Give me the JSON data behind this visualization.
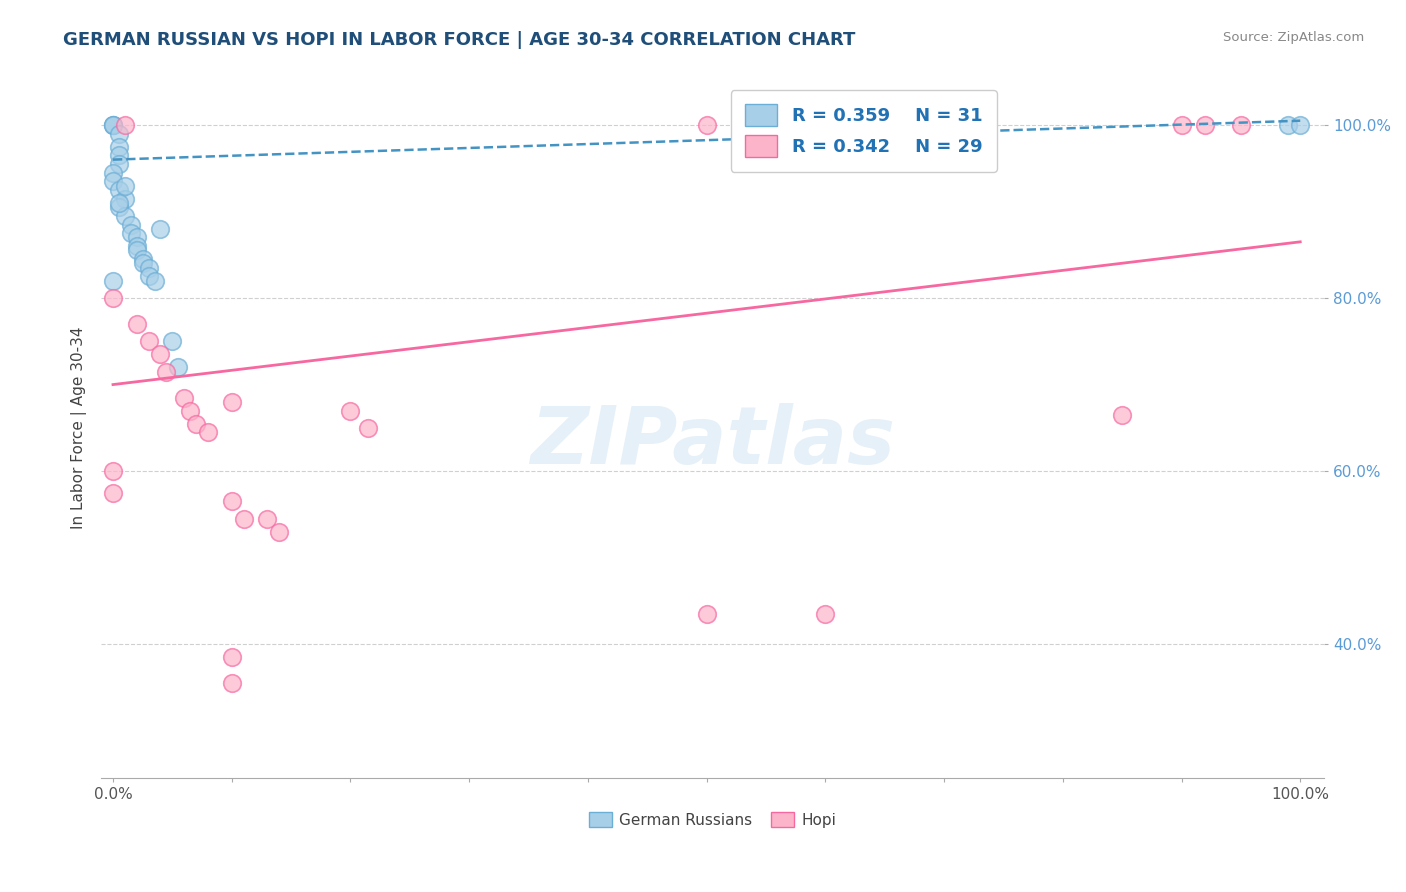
{
  "title": "GERMAN RUSSIAN VS HOPI IN LABOR FORCE | AGE 30-34 CORRELATION CHART",
  "source": "Source: ZipAtlas.com",
  "ylabel": "In Labor Force | Age 30-34",
  "watermark": "ZIPatlas",
  "legend_blue_r": "R = 0.359",
  "legend_blue_n": "N = 31",
  "legend_pink_r": "R = 0.342",
  "legend_pink_n": "N = 29",
  "xmin": -0.01,
  "xmax": 1.02,
  "ymin": 0.245,
  "ymax": 1.055,
  "blue_color": "#a8cfe8",
  "blue_edge_color": "#6baed6",
  "blue_line_color": "#4393c3",
  "pink_color": "#fbb4c9",
  "pink_edge_color": "#f768a1",
  "pink_line_color": "#f768a1",
  "blue_scatter": [
    [
      0.0,
      1.0
    ],
    [
      0.0,
      1.0
    ],
    [
      0.0,
      1.0
    ],
    [
      0.005,
      0.99
    ],
    [
      0.005,
      0.975
    ],
    [
      0.005,
      0.965
    ],
    [
      0.005,
      0.955
    ],
    [
      0.0,
      0.945
    ],
    [
      0.0,
      0.935
    ],
    [
      0.005,
      0.925
    ],
    [
      0.01,
      0.915
    ],
    [
      0.005,
      0.905
    ],
    [
      0.01,
      0.895
    ],
    [
      0.015,
      0.885
    ],
    [
      0.015,
      0.875
    ],
    [
      0.02,
      0.87
    ],
    [
      0.02,
      0.86
    ],
    [
      0.02,
      0.855
    ],
    [
      0.025,
      0.845
    ],
    [
      0.025,
      0.84
    ],
    [
      0.03,
      0.835
    ],
    [
      0.03,
      0.825
    ],
    [
      0.035,
      0.82
    ],
    [
      0.04,
      0.88
    ],
    [
      0.05,
      0.75
    ],
    [
      0.055,
      0.72
    ],
    [
      0.0,
      0.82
    ],
    [
      0.005,
      0.91
    ],
    [
      0.01,
      0.93
    ],
    [
      0.99,
      1.0
    ],
    [
      1.0,
      1.0
    ]
  ],
  "pink_scatter": [
    [
      0.01,
      1.0
    ],
    [
      0.5,
      1.0
    ],
    [
      0.55,
      1.0
    ],
    [
      0.9,
      1.0
    ],
    [
      0.92,
      1.0
    ],
    [
      0.95,
      1.0
    ],
    [
      0.0,
      0.8
    ],
    [
      0.02,
      0.77
    ],
    [
      0.03,
      0.75
    ],
    [
      0.04,
      0.735
    ],
    [
      0.045,
      0.715
    ],
    [
      0.06,
      0.685
    ],
    [
      0.065,
      0.67
    ],
    [
      0.07,
      0.655
    ],
    [
      0.08,
      0.645
    ],
    [
      0.1,
      0.68
    ],
    [
      0.0,
      0.6
    ],
    [
      0.0,
      0.575
    ],
    [
      0.1,
      0.565
    ],
    [
      0.11,
      0.545
    ],
    [
      0.13,
      0.545
    ],
    [
      0.14,
      0.53
    ],
    [
      0.5,
      0.435
    ],
    [
      0.6,
      0.435
    ],
    [
      0.85,
      0.665
    ],
    [
      0.1,
      0.385
    ],
    [
      0.1,
      0.355
    ],
    [
      0.2,
      0.67
    ],
    [
      0.215,
      0.65
    ]
  ],
  "blue_line": [
    [
      0.0,
      0.96
    ],
    [
      1.0,
      1.005
    ]
  ],
  "pink_line": [
    [
      0.0,
      0.7
    ],
    [
      1.0,
      0.865
    ]
  ],
  "grid_color": "#d0d0d0",
  "background_color": "#ffffff",
  "yticks": [
    0.4,
    0.6,
    0.8,
    1.0
  ],
  "ytick_labels": [
    "40.0%",
    "60.0%",
    "80.0%",
    "100.0%"
  ],
  "xticks": [
    0.0,
    1.0
  ],
  "xtick_labels": [
    "0.0%",
    "100.0%"
  ]
}
